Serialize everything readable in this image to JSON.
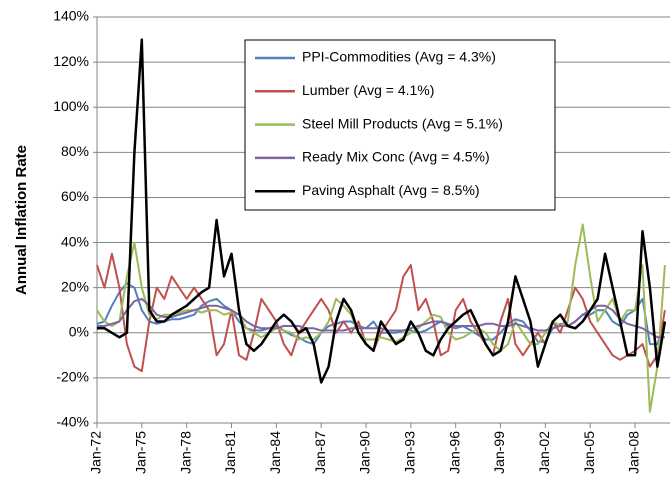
{
  "chart_data": {
    "type": "line",
    "y_axis_label": "Annual Inflation Rate",
    "categories": [
      "Jan-72",
      null,
      null,
      null,
      null,
      null,
      "Jan-75",
      null,
      null,
      null,
      null,
      null,
      "Jan-78",
      null,
      null,
      null,
      null,
      null,
      "Jan-81",
      null,
      null,
      null,
      null,
      null,
      "Jan-84",
      null,
      null,
      null,
      null,
      null,
      "Jan-87",
      null,
      null,
      null,
      null,
      null,
      "Jan-90",
      null,
      null,
      null,
      null,
      null,
      "Jan-93",
      null,
      null,
      null,
      null,
      null,
      "Jan-96",
      null,
      null,
      null,
      null,
      null,
      "Jan-99",
      null,
      null,
      null,
      null,
      null,
      "Jan-02",
      null,
      null,
      null,
      null,
      null,
      "Jan-05",
      null,
      null,
      null,
      null,
      null,
      "Jan-08",
      null,
      null,
      null,
      null
    ],
    "series": [
      {
        "name": "PPI-Commodities (Avg = 4.3%)",
        "color": "#4f81bd",
        "values": [
          4,
          5,
          12,
          18,
          22,
          20,
          10,
          5,
          4,
          5,
          6,
          6,
          7,
          8,
          12,
          14,
          15,
          12,
          10,
          5,
          2,
          1,
          1,
          2,
          3,
          1,
          -1,
          -2,
          -4,
          -5,
          0,
          3,
          4,
          5,
          5,
          3,
          2,
          5,
          0,
          0,
          0,
          1,
          1,
          0,
          1,
          3,
          5,
          3,
          2,
          3,
          1,
          -1,
          -3,
          -3,
          0,
          4,
          6,
          5,
          1,
          -4,
          -4,
          2,
          4,
          3,
          5,
          8,
          8,
          10,
          10,
          5,
          3,
          8,
          10,
          15,
          -5,
          -5,
          5
        ]
      },
      {
        "name": "Lumber (Avg = 4.1%)",
        "color": "#c0504d",
        "values": [
          30,
          20,
          35,
          20,
          -5,
          -15,
          -17,
          5,
          20,
          15,
          25,
          20,
          15,
          20,
          15,
          10,
          -10,
          -5,
          10,
          -10,
          -12,
          0,
          15,
          10,
          5,
          -5,
          -10,
          0,
          5,
          10,
          15,
          10,
          0,
          5,
          0,
          5,
          -5,
          -8,
          0,
          5,
          10,
          25,
          30,
          10,
          15,
          5,
          -10,
          -8,
          10,
          15,
          5,
          0,
          -5,
          -10,
          5,
          15,
          -5,
          -10,
          -5,
          0,
          -5,
          5,
          0,
          10,
          20,
          15,
          5,
          0,
          -5,
          -10,
          -12,
          -10,
          -8,
          -5,
          -15,
          -10,
          10
        ]
      },
      {
        "name": "Steel Mill Products (Avg = 5.1%)",
        "color": "#9bbb59",
        "values": [
          10,
          5,
          3,
          5,
          25,
          40,
          20,
          8,
          6,
          8,
          8,
          9,
          10,
          10,
          9,
          10,
          10,
          8,
          9,
          8,
          2,
          0,
          -2,
          0,
          2,
          1,
          0,
          -3,
          -2,
          -3,
          0,
          5,
          15,
          12,
          8,
          0,
          -3,
          -3,
          -2,
          -3,
          -4,
          -2,
          0,
          2,
          5,
          8,
          7,
          0,
          -3,
          -2,
          0,
          2,
          0,
          -5,
          -8,
          -5,
          5,
          0,
          -5,
          -5,
          0,
          5,
          3,
          5,
          30,
          48,
          25,
          5,
          10,
          15,
          5,
          10,
          10,
          30,
          -35,
          -15,
          30
        ]
      },
      {
        "name": "Ready Mix Conc (Avg = 4.5%)",
        "color": "#8064a2",
        "values": [
          3,
          3,
          4,
          5,
          10,
          14,
          15,
          12,
          8,
          7,
          7,
          8,
          9,
          10,
          11,
          12,
          12,
          11,
          10,
          8,
          5,
          3,
          2,
          2,
          2,
          3,
          3,
          3,
          2,
          2,
          1,
          1,
          1,
          1,
          2,
          2,
          2,
          2,
          2,
          1,
          1,
          1,
          2,
          3,
          4,
          5,
          5,
          4,
          3,
          3,
          3,
          3,
          4,
          4,
          3,
          3,
          4,
          3,
          2,
          1,
          1,
          2,
          3,
          3,
          5,
          8,
          10,
          12,
          12,
          10,
          6,
          4,
          3,
          2,
          0,
          -2,
          -2
        ]
      },
      {
        "name": "Paving Asphalt (Avg = 8.5%)",
        "color": "#000000",
        "values": [
          2,
          2,
          0,
          -2,
          0,
          80,
          130,
          10,
          5,
          5,
          8,
          10,
          12,
          15,
          18,
          20,
          50,
          25,
          35,
          10,
          -5,
          -8,
          -5,
          0,
          5,
          8,
          5,
          0,
          2,
          -5,
          -22,
          -15,
          5,
          15,
          10,
          0,
          -5,
          -8,
          5,
          0,
          -5,
          -3,
          5,
          0,
          -8,
          -10,
          -3,
          2,
          5,
          8,
          10,
          3,
          -5,
          -10,
          -8,
          5,
          25,
          15,
          5,
          -15,
          -5,
          5,
          8,
          3,
          2,
          5,
          10,
          15,
          35,
          20,
          5,
          -10,
          -10,
          45,
          20,
          -15,
          5
        ]
      }
    ],
    "ylim": [
      -40,
      140
    ],
    "yticks": [
      {
        "value": -40,
        "label": "-40%"
      },
      {
        "value": -20,
        "label": "-20%"
      },
      {
        "value": 0,
        "label": "0%"
      },
      {
        "value": 20,
        "label": "20%"
      },
      {
        "value": 40,
        "label": "40%"
      },
      {
        "value": 60,
        "label": "60%"
      },
      {
        "value": 80,
        "label": "80%"
      },
      {
        "value": 100,
        "label": "100%"
      },
      {
        "value": 120,
        "label": "120%"
      },
      {
        "value": 140,
        "label": "140%"
      }
    ],
    "grid": true
  }
}
